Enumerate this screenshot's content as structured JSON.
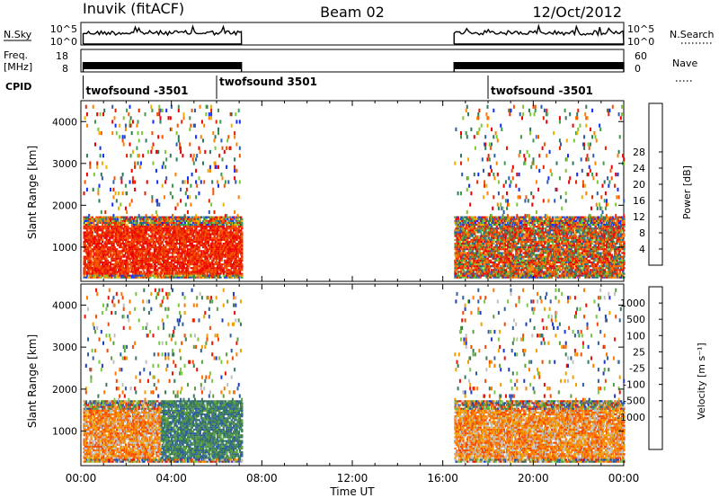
{
  "header": {
    "radar": "Inuvik  (fitACF)",
    "beam": "Beam 02",
    "date": "12/Oct/2012"
  },
  "top_panels": {
    "nsky_label": "N.Sky",
    "nsky_ticks": [
      "10^5",
      "10^0"
    ],
    "nsearch_label": "N.Search",
    "nsearch_ticks": [
      "10^5",
      "10^0"
    ],
    "freq_label_1": "Freq.",
    "freq_label_2": "[MHz]",
    "freq_ticks": [
      "18",
      "8"
    ],
    "nave_label": "Nave",
    "nave_ticks": [
      "60",
      "0"
    ],
    "cpid_label": "CPID",
    "data_intervals_hours": [
      [
        0.1,
        7.1
      ],
      [
        16.5,
        24.0
      ]
    ],
    "cpid_segments": [
      {
        "label": "twofsound -3501",
        "start_hour": 0.1
      },
      {
        "label": "twofsound 3501",
        "start_hour": 6.0
      },
      {
        "label": "twofsound -3501",
        "start_hour": 18.0
      }
    ]
  },
  "chart_data": [
    {
      "type": "heatmap",
      "title": "",
      "xlabel": "Time UT",
      "ylabel": "Slant Range [km]",
      "x_range_hours": [
        0,
        24
      ],
      "ylim": [
        180,
        4500
      ],
      "x_ticks": [
        "00:00",
        "04:00",
        "08:00",
        "12:00",
        "16:00",
        "20:00",
        "00:00"
      ],
      "y_ticks": [
        "1000",
        "2000",
        "3000",
        "4000"
      ],
      "data_intervals_hours": [
        [
          0.1,
          7.1
        ],
        [
          16.5,
          24.0
        ]
      ],
      "colorbar": {
        "label": "Power [dB]",
        "ticks": [
          "4",
          "8",
          "12",
          "16",
          "20",
          "24",
          "28"
        ],
        "colors": [
          "#1030ff",
          "#2d5bb0",
          "#2f7a5a",
          "#3d9a4a",
          "#7cc834",
          "#f0b000",
          "#ff8000",
          "#f45400",
          "#e82400",
          "#ee0000"
        ]
      },
      "dominant_regions": [
        {
          "t_start": 0.1,
          "t_end": 7.1,
          "r_min": 300,
          "r_max": 1500,
          "value": "24-32 dB"
        },
        {
          "t_start": 16.5,
          "t_end": 24.0,
          "r_min": 300,
          "r_max": 1500,
          "value": "8-28 dB"
        }
      ]
    },
    {
      "type": "heatmap",
      "title": "",
      "xlabel": "Time UT",
      "ylabel": "Slant Range [km]",
      "x_range_hours": [
        0,
        24
      ],
      "ylim": [
        180,
        4500
      ],
      "x_ticks": [
        "00:00",
        "04:00",
        "08:00",
        "12:00",
        "16:00",
        "20:00",
        "00:00"
      ],
      "y_ticks": [
        "1000",
        "2000",
        "3000",
        "4000"
      ],
      "data_intervals_hours": [
        [
          0.1,
          7.1
        ],
        [
          16.5,
          24.0
        ]
      ],
      "colorbar": {
        "label": "Velocity  [m s⁻¹]",
        "ticks": [
          "1000",
          "500",
          "100",
          "25",
          "-25",
          "-100",
          "-500",
          "-1000"
        ],
        "colors": [
          "#1a3cc8",
          "#2f5fa0",
          "#3a7a5a",
          "#5aa040",
          "#76c840",
          "#c0c0c0",
          "#f0a000",
          "#ff7800",
          "#f44a00",
          "#ee1000"
        ]
      },
      "dominant_regions": [
        {
          "t_start": 0.1,
          "t_end": 3.5,
          "r_min": 300,
          "r_max": 1500,
          "value": "-100 to -500"
        },
        {
          "t_start": 3.5,
          "t_end": 7.1,
          "r_min": 300,
          "r_max": 1800,
          "value": "100 to 500"
        },
        {
          "t_start": 16.5,
          "t_end": 24.0,
          "r_min": 300,
          "r_max": 1500,
          "value": "-100 to -500"
        }
      ]
    }
  ]
}
